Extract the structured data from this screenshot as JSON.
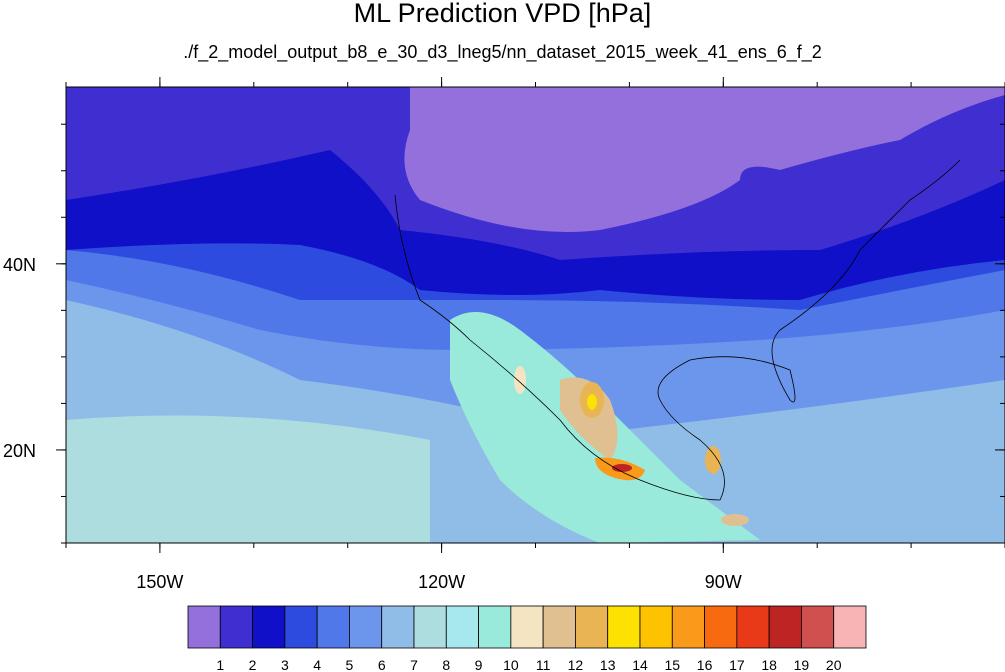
{
  "chart_data": {
    "type": "heatmap",
    "title": "ML Prediction VPD [hPa]",
    "subtitle": "./f_2_model_output_b8_e_30_d3_lneg5/nn_dataset_2015_week_41_ens_6_f_2",
    "x_ticks": [
      "150W",
      "120W",
      "90W"
    ],
    "y_ticks": [
      "40N",
      "20N"
    ],
    "colorbar": {
      "levels": [
        "1",
        "2",
        "3",
        "4",
        "5",
        "6",
        "7",
        "8",
        "9",
        "10",
        "11",
        "12",
        "13",
        "14",
        "15",
        "16",
        "17",
        "18",
        "19",
        "20"
      ],
      "colors": [
        "#9370db",
        "#3f2fd0",
        "#0f10c8",
        "#2e4be0",
        "#5078e8",
        "#6c95ec",
        "#8fbde8",
        "#aedde0",
        "#a6e8ee",
        "#9aeadc",
        "#f5e4c2",
        "#e0c090",
        "#e8b454",
        "#fde100",
        "#fdc200",
        "#f99a1a",
        "#f86a10",
        "#e83a18",
        "#bd2424",
        "#d05050",
        "#f8b4b4"
      ]
    },
    "region": {
      "lon_range": [
        -160,
        -60
      ],
      "lat_range": [
        10,
        59
      ]
    }
  }
}
